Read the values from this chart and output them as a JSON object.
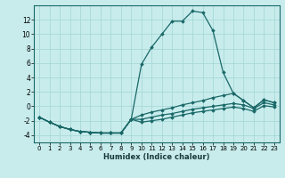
{
  "xlabel": "Humidex (Indice chaleur)",
  "bg_color": "#c8ecec",
  "grid_color": "#a8d8d8",
  "line_color": "#1a6868",
  "xlim": [
    -0.5,
    23.5
  ],
  "ylim": [
    -5,
    14
  ],
  "xticks": [
    0,
    1,
    2,
    3,
    4,
    5,
    6,
    7,
    8,
    9,
    10,
    11,
    12,
    13,
    14,
    15,
    16,
    17,
    18,
    19,
    20,
    21,
    22,
    23
  ],
  "yticks": [
    -4,
    -2,
    0,
    2,
    4,
    6,
    8,
    10,
    12
  ],
  "series1": [
    [
      0,
      -1.5
    ],
    [
      1,
      -2.2
    ],
    [
      2,
      -2.8
    ],
    [
      3,
      -3.2
    ],
    [
      4,
      -3.5
    ],
    [
      5,
      -3.6
    ],
    [
      6,
      -3.7
    ],
    [
      7,
      -3.7
    ],
    [
      8,
      -3.7
    ],
    [
      9,
      -1.8
    ],
    [
      10,
      5.8
    ],
    [
      11,
      8.2
    ],
    [
      12,
      10.0
    ],
    [
      13,
      11.8
    ],
    [
      14,
      11.8
    ],
    [
      15,
      13.2
    ],
    [
      16,
      13.0
    ],
    [
      17,
      10.5
    ],
    [
      18,
      4.7
    ],
    [
      19,
      1.8
    ],
    [
      20,
      0.8
    ],
    [
      21,
      -0.2
    ],
    [
      22,
      0.9
    ],
    [
      23,
      0.5
    ]
  ],
  "series2": [
    [
      0,
      -1.5
    ],
    [
      1,
      -2.2
    ],
    [
      2,
      -2.8
    ],
    [
      3,
      -3.2
    ],
    [
      4,
      -3.5
    ],
    [
      5,
      -3.6
    ],
    [
      6,
      -3.7
    ],
    [
      7,
      -3.7
    ],
    [
      8,
      -3.7
    ],
    [
      9,
      -1.8
    ],
    [
      10,
      -1.2
    ],
    [
      11,
      -0.8
    ],
    [
      12,
      -0.5
    ],
    [
      13,
      -0.2
    ],
    [
      14,
      0.2
    ],
    [
      15,
      0.5
    ],
    [
      16,
      0.8
    ],
    [
      17,
      1.2
    ],
    [
      18,
      1.5
    ],
    [
      19,
      1.8
    ],
    [
      20,
      0.8
    ],
    [
      21,
      -0.2
    ],
    [
      22,
      0.9
    ],
    [
      23,
      0.5
    ]
  ],
  "series3": [
    [
      0,
      -1.5
    ],
    [
      1,
      -2.2
    ],
    [
      2,
      -2.8
    ],
    [
      3,
      -3.2
    ],
    [
      4,
      -3.5
    ],
    [
      5,
      -3.6
    ],
    [
      6,
      -3.7
    ],
    [
      7,
      -3.7
    ],
    [
      8,
      -3.7
    ],
    [
      9,
      -1.8
    ],
    [
      10,
      -1.8
    ],
    [
      11,
      -1.5
    ],
    [
      12,
      -1.2
    ],
    [
      13,
      -1.0
    ],
    [
      14,
      -0.7
    ],
    [
      15,
      -0.4
    ],
    [
      16,
      -0.2
    ],
    [
      17,
      0.0
    ],
    [
      18,
      0.2
    ],
    [
      19,
      0.4
    ],
    [
      20,
      0.2
    ],
    [
      21,
      -0.3
    ],
    [
      22,
      0.5
    ],
    [
      23,
      0.2
    ]
  ],
  "series4": [
    [
      0,
      -1.5
    ],
    [
      1,
      -2.2
    ],
    [
      2,
      -2.8
    ],
    [
      3,
      -3.2
    ],
    [
      4,
      -3.5
    ],
    [
      5,
      -3.6
    ],
    [
      6,
      -3.7
    ],
    [
      7,
      -3.7
    ],
    [
      8,
      -3.7
    ],
    [
      9,
      -1.8
    ],
    [
      10,
      -2.2
    ],
    [
      11,
      -2.0
    ],
    [
      12,
      -1.8
    ],
    [
      13,
      -1.5
    ],
    [
      14,
      -1.2
    ],
    [
      15,
      -0.9
    ],
    [
      16,
      -0.7
    ],
    [
      17,
      -0.5
    ],
    [
      18,
      -0.3
    ],
    [
      19,
      -0.1
    ],
    [
      20,
      -0.3
    ],
    [
      21,
      -0.7
    ],
    [
      22,
      0.1
    ],
    [
      23,
      -0.1
    ]
  ]
}
